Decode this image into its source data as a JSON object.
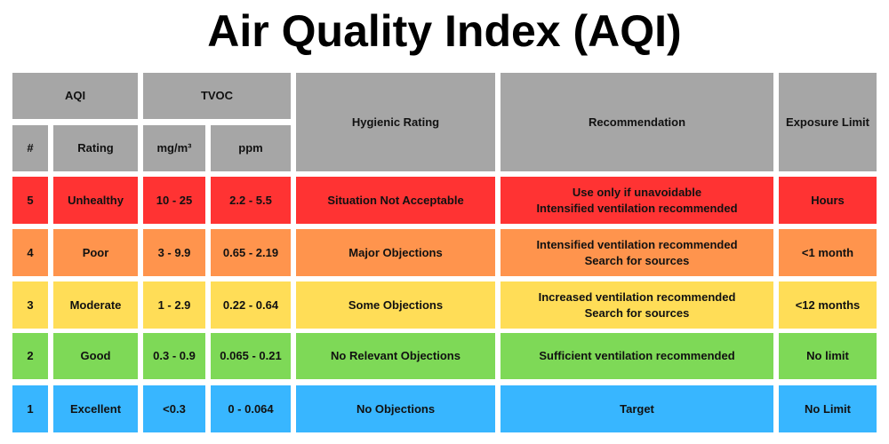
{
  "title": "Air Quality Index (AQI)",
  "header": {
    "aqi": "AQI",
    "tvoc": "TVOC",
    "number": "#",
    "rating": "Rating",
    "mg": "mg/m³",
    "ppm": "ppm",
    "hygienic": "Hygienic Rating",
    "recommendation": "Recommendation",
    "exposure": "Exposure Limit"
  },
  "colors": {
    "header": "#a6a6a6",
    "level5": "#ff3333",
    "level4": "#ff944d",
    "level3": "#ffdd57",
    "level2": "#7ed957",
    "level1": "#38b6ff"
  },
  "rows": [
    {
      "num": "5",
      "rating": "Unhealthy",
      "mg": "10 - 25",
      "ppm": "2.2 - 5.5",
      "hygienic": "Situation Not Acceptable",
      "rec1": "Use only if unavoidable",
      "rec2": "Intensified ventilation recommended",
      "exposure": "Hours"
    },
    {
      "num": "4",
      "rating": "Poor",
      "mg": "3 - 9.9",
      "ppm": "0.65 - 2.19",
      "hygienic": "Major Objections",
      "rec1": "Intensified ventilation recommended",
      "rec2": "Search for sources",
      "exposure": "<1 month"
    },
    {
      "num": "3",
      "rating": "Moderate",
      "mg": "1 - 2.9",
      "ppm": "0.22 - 0.64",
      "hygienic": "Some Objections",
      "rec1": "Increased ventilation recommended",
      "rec2": "Search for sources",
      "exposure": "<12 months"
    },
    {
      "num": "2",
      "rating": "Good",
      "mg": "0.3 - 0.9",
      "ppm": "0.065 - 0.21",
      "hygienic": "No Relevant Objections",
      "rec1": "Sufficient ventilation recommended",
      "rec2": "",
      "exposure": "No limit"
    },
    {
      "num": "1",
      "rating": "Excellent",
      "mg": "<0.3",
      "ppm": "0 - 0.064",
      "hygienic": "No Objections",
      "rec1": "Target",
      "rec2": "",
      "exposure": "No Limit"
    }
  ]
}
